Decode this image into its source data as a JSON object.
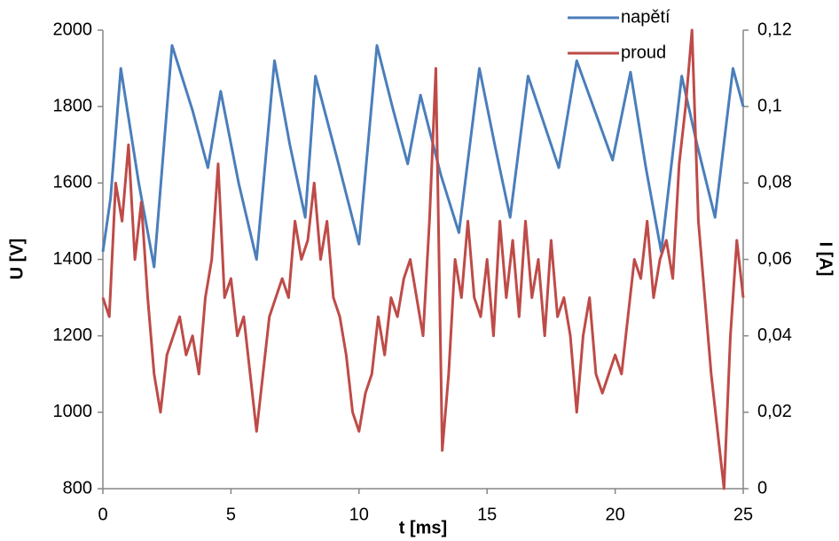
{
  "chart_data": {
    "type": "line",
    "x_label": "t [ms]",
    "y_label": "U [V]",
    "y2_label": "I [A]",
    "xlim": [
      0,
      25
    ],
    "xticks": [
      0,
      5,
      10,
      15,
      20,
      25
    ],
    "ylim": [
      800,
      2000
    ],
    "yticks": [
      800,
      1000,
      1200,
      1400,
      1600,
      1800,
      2000
    ],
    "y2lim": [
      0,
      0.12
    ],
    "y2ticks": [
      0,
      {
        "value": 0.02,
        "label": "0,02"
      },
      {
        "value": 0.04,
        "label": "0,04"
      },
      {
        "value": 0.06,
        "label": "0,06"
      },
      {
        "value": 0.08,
        "label": "0,08"
      },
      {
        "value": 0.1,
        "label": "0,1"
      },
      {
        "value": 0.12,
        "label": "0,12"
      }
    ],
    "grid": false,
    "legend": "top-right",
    "series": [
      {
        "name": "napětí",
        "color": "#4a7ebb",
        "x": [
          0,
          0.3,
          0.7,
          1.4,
          2.0,
          2.7,
          3.5,
          4.1,
          4.6,
          5.3,
          6.0,
          6.7,
          7.3,
          7.9,
          8.3,
          9.2,
          10.0,
          10.7,
          11.3,
          11.9,
          12.4,
          13.2,
          13.9,
          14.7,
          15.3,
          15.9,
          16.6,
          17.2,
          17.8,
          18.5,
          19.2,
          19.9,
          20.6,
          21.2,
          21.8,
          22.6,
          23.2,
          23.9,
          24.6,
          25
        ],
        "values": [
          1420,
          1560,
          1900,
          1600,
          1380,
          1960,
          1790,
          1640,
          1840,
          1600,
          1400,
          1920,
          1700,
          1510,
          1880,
          1650,
          1440,
          1960,
          1800,
          1650,
          1830,
          1620,
          1470,
          1900,
          1700,
          1510,
          1880,
          1760,
          1640,
          1920,
          1790,
          1660,
          1890,
          1640,
          1420,
          1880,
          1700,
          1510,
          1900,
          1800
        ]
      },
      {
        "name": "proud",
        "color": "#be4b48",
        "axis": "y2",
        "x": [
          0,
          0.25,
          0.5,
          0.75,
          1,
          1.25,
          1.5,
          1.75,
          2,
          2.25,
          2.5,
          2.75,
          3,
          3.25,
          3.5,
          3.75,
          4,
          4.25,
          4.5,
          4.75,
          5,
          5.25,
          5.5,
          5.75,
          6,
          6.25,
          6.5,
          6.75,
          7,
          7.25,
          7.5,
          7.75,
          8,
          8.25,
          8.5,
          8.75,
          9,
          9.25,
          9.5,
          9.75,
          10,
          10.25,
          10.5,
          10.75,
          11,
          11.25,
          11.5,
          11.75,
          12,
          12.25,
          12.5,
          12.75,
          13,
          13.25,
          13.5,
          13.75,
          14,
          14.25,
          14.5,
          14.75,
          15,
          15.25,
          15.5,
          15.75,
          16,
          16.25,
          16.5,
          16.75,
          17,
          17.25,
          17.5,
          17.75,
          18,
          18.25,
          18.5,
          18.75,
          19,
          19.25,
          19.5,
          19.75,
          20,
          20.25,
          20.5,
          20.75,
          21,
          21.25,
          21.5,
          21.75,
          22,
          22.25,
          22.5,
          22.75,
          23,
          23.25,
          23.5,
          23.75,
          24,
          24.25,
          24.5,
          24.75,
          25
        ],
        "values": [
          0.05,
          0.045,
          0.08,
          0.07,
          0.09,
          0.06,
          0.075,
          0.05,
          0.03,
          0.02,
          0.035,
          0.04,
          0.045,
          0.035,
          0.04,
          0.03,
          0.05,
          0.06,
          0.085,
          0.05,
          0.055,
          0.04,
          0.045,
          0.03,
          0.015,
          0.03,
          0.045,
          0.05,
          0.055,
          0.05,
          0.07,
          0.06,
          0.065,
          0.08,
          0.06,
          0.07,
          0.05,
          0.045,
          0.035,
          0.02,
          0.015,
          0.025,
          0.03,
          0.045,
          0.035,
          0.05,
          0.045,
          0.055,
          0.06,
          0.05,
          0.04,
          0.07,
          0.11,
          0.01,
          0.03,
          0.06,
          0.05,
          0.07,
          0.05,
          0.045,
          0.06,
          0.04,
          0.07,
          0.05,
          0.065,
          0.045,
          0.07,
          0.05,
          0.06,
          0.04,
          0.065,
          0.045,
          0.05,
          0.04,
          0.02,
          0.04,
          0.05,
          0.03,
          0.025,
          0.03,
          0.035,
          0.03,
          0.045,
          0.06,
          0.055,
          0.07,
          0.05,
          0.06,
          0.065,
          0.055,
          0.085,
          0.1,
          0.12,
          0.07,
          0.05,
          0.03,
          0.015,
          0,
          0.04,
          0.065,
          0.05
        ]
      }
    ]
  }
}
